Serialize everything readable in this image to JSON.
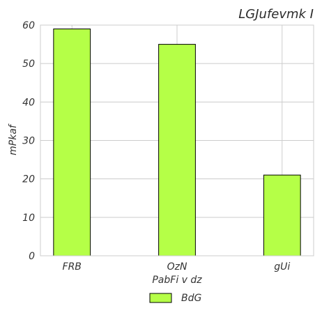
{
  "chart_data": {
    "type": "bar",
    "title": "LGJufevmk I",
    "xlabel": "PabFi  v dz",
    "ylabel": "mPkaf",
    "categories": [
      "FRB",
      "OzN",
      "gUi"
    ],
    "series": [
      {
        "name": "BdG",
        "values": [
          59,
          55,
          21
        ],
        "color": "#b5ff47"
      }
    ],
    "ylim": [
      0,
      60
    ],
    "yticks": [
      0,
      10,
      20,
      30,
      40,
      50,
      60
    ],
    "grid": true,
    "legend_position": "bottom-center"
  }
}
